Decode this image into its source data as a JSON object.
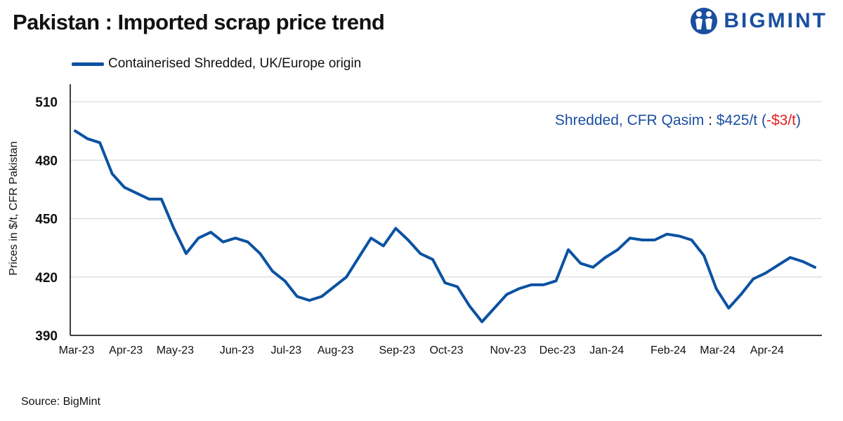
{
  "header": {
    "title": "Pakistan : Imported scrap price trend",
    "logo_text": "BIGMINT"
  },
  "annotation": {
    "label": "Shredded, CFR Qasim",
    "sep": " : ",
    "price": "$425/t",
    "open": " (",
    "change": "-$3/t",
    "close": ")",
    "label_color": "#1a4fa0",
    "change_color": "#e02020"
  },
  "source": "Source: BigMint",
  "colors": {
    "series": "#0b52a2",
    "grid": "#d9d9d9",
    "axis": "#000000"
  },
  "chart_data": {
    "type": "line",
    "title": "Pakistan : Imported scrap price trend",
    "ylabel": "Prices in $/t, CFR Pakistan",
    "xlabel": "",
    "ylim": [
      390,
      510
    ],
    "yticks": [
      390,
      420,
      450,
      480,
      510
    ],
    "grid": "horizontal",
    "legend_position": "top-left",
    "x_tick_labels": [
      {
        "label": "Mar-23",
        "i": 0
      },
      {
        "label": "Apr-23",
        "i": 4
      },
      {
        "label": "May-23",
        "i": 8
      },
      {
        "label": "Jun-23",
        "i": 13
      },
      {
        "label": "Jul-23",
        "i": 17
      },
      {
        "label": "Aug-23",
        "i": 21
      },
      {
        "label": "Sep-23",
        "i": 26
      },
      {
        "label": "Oct-23",
        "i": 30
      },
      {
        "label": "Nov-23",
        "i": 35
      },
      {
        "label": "Dec-23",
        "i": 39
      },
      {
        "label": "Jan-24",
        "i": 43
      },
      {
        "label": "Feb-24",
        "i": 48
      },
      {
        "label": "Mar-24",
        "i": 52
      },
      {
        "label": "Apr-24",
        "i": 56
      }
    ],
    "series": [
      {
        "name": "Containerised Shredded, UK/Europe origin",
        "values": [
          495,
          491,
          489,
          473,
          466,
          463,
          460,
          460,
          445,
          432,
          440,
          443,
          438,
          440,
          438,
          432,
          423,
          418,
          410,
          408,
          410,
          415,
          420,
          430,
          440,
          436,
          445,
          439,
          432,
          429,
          417,
          415,
          405,
          397,
          404,
          411,
          414,
          416,
          416,
          418,
          434,
          427,
          425,
          430,
          434,
          440,
          439,
          439,
          442,
          441,
          439,
          431,
          414,
          404,
          411,
          419,
          422,
          426,
          430,
          428,
          425
        ]
      }
    ]
  }
}
